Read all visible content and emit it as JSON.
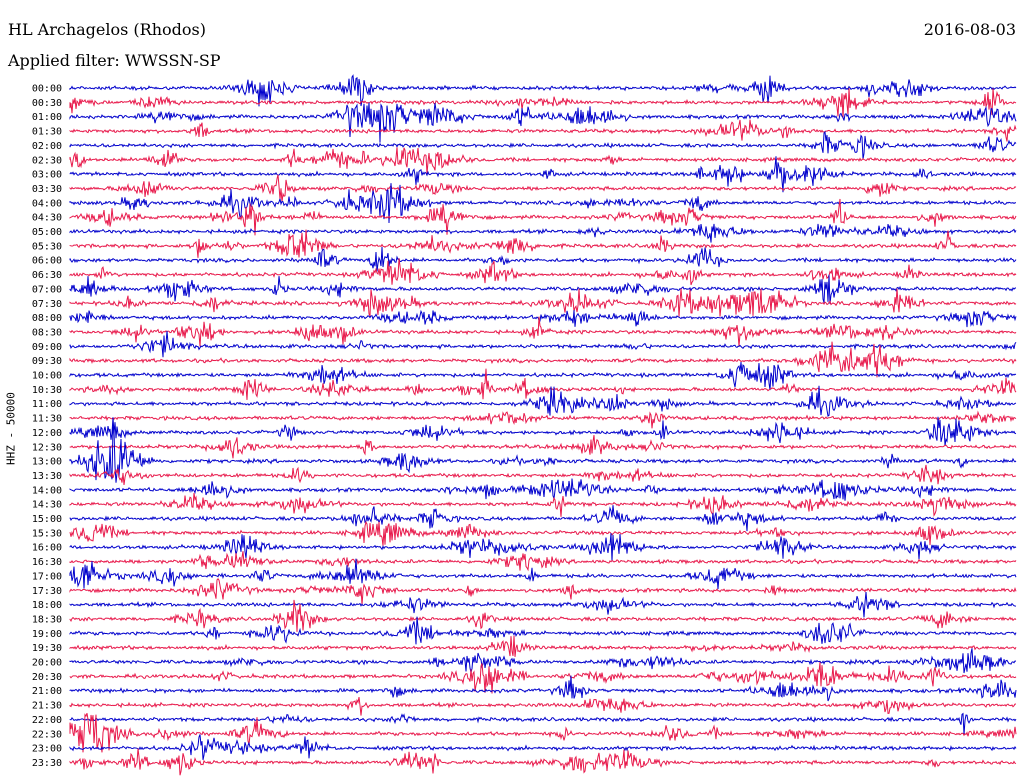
{
  "header": {
    "station": "HL Archagelos (Rhodos)",
    "date": "2016-08-03",
    "filter": "Applied filter: WWSSN-SP"
  },
  "axis": {
    "ylabel": "HHZ - 50000"
  },
  "colors": {
    "even_trace": "#0000cc",
    "odd_trace": "#e8194b",
    "text": "#000000",
    "background": "#ffffff"
  },
  "chart_data": {
    "type": "line",
    "title": "",
    "ylabel": "HHZ - 50000",
    "trace_times": [
      "00:00",
      "00:30",
      "01:00",
      "01:30",
      "02:00",
      "02:30",
      "03:00",
      "03:30",
      "04:00",
      "04:30",
      "05:00",
      "05:30",
      "06:00",
      "06:30",
      "07:00",
      "07:30",
      "08:00",
      "08:30",
      "09:00",
      "09:30",
      "10:00",
      "10:30",
      "11:00",
      "11:30",
      "12:00",
      "12:30",
      "13:00",
      "13:30",
      "14:00",
      "14:30",
      "15:00",
      "15:30",
      "16:00",
      "16:30",
      "17:00",
      "17:30",
      "18:00",
      "18:30",
      "19:00",
      "19:30",
      "20:00",
      "20:30",
      "21:00",
      "21:30",
      "22:00",
      "22:30",
      "23:00",
      "23:30"
    ],
    "series_colors": [
      "#0000cc",
      "#e8194b"
    ]
  }
}
